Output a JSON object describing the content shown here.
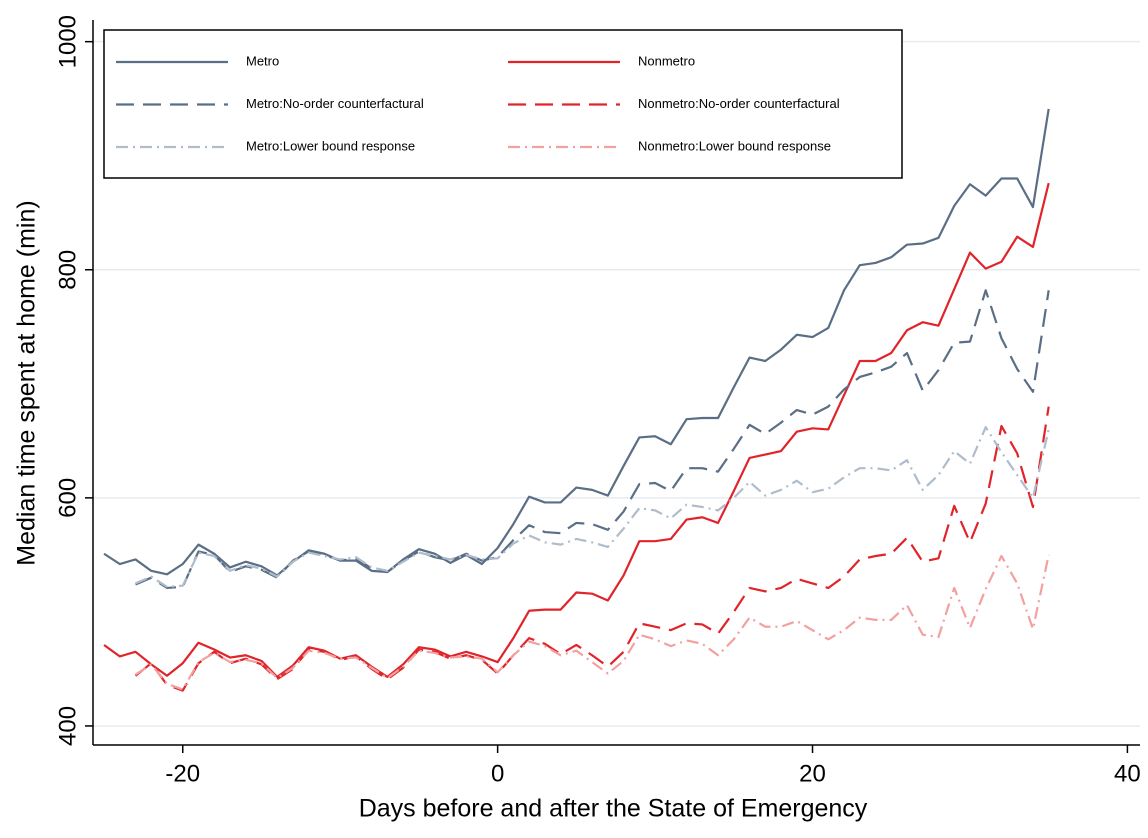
{
  "chart_data": {
    "type": "line",
    "xlabel": "Days before and after the State of Emergency",
    "ylabel": "Median time spent at home (min)",
    "x": [
      -25,
      -24,
      -23,
      -22,
      -21,
      -20,
      -19,
      -18,
      -17,
      -16,
      -15,
      -14,
      -13,
      -12,
      -11,
      -10,
      -9,
      -8,
      -7,
      -6,
      -5,
      -4,
      -3,
      -2,
      -1,
      0,
      1,
      2,
      3,
      4,
      5,
      6,
      7,
      8,
      9,
      10,
      11,
      12,
      13,
      14,
      15,
      16,
      17,
      18,
      19,
      20,
      21,
      22,
      23,
      24,
      25,
      26,
      27,
      28,
      29,
      30,
      31,
      32,
      33,
      34,
      35
    ],
    "series": [
      {
        "name": "Metro",
        "color": "#5a6f85",
        "dash": "solid",
        "values": [
          551,
          542,
          546,
          536,
          533,
          542,
          559,
          551,
          539,
          544,
          540,
          532,
          544,
          554,
          551,
          545,
          545,
          536,
          535,
          546,
          555,
          551,
          543,
          550,
          542,
          556,
          577,
          601,
          596,
          596,
          609,
          607,
          602,
          628,
          653,
          654,
          647,
          669,
          670,
          670,
          697,
          723,
          720,
          730,
          743,
          741,
          749,
          782,
          804,
          806,
          811,
          822,
          823,
          828,
          856,
          875,
          865,
          880,
          880,
          855,
          941
        ]
      },
      {
        "name": "Nonmetro",
        "color": "#e0242a",
        "dash": "solid",
        "values": [
          471,
          461,
          465,
          454,
          444,
          455,
          473,
          467,
          460,
          462,
          457,
          443,
          453,
          469,
          466,
          459,
          462,
          452,
          443,
          454,
          469,
          467,
          461,
          465,
          461,
          456,
          477,
          501,
          502,
          502,
          517,
          516,
          510,
          532,
          562,
          562,
          564,
          581,
          583,
          578,
          606,
          635,
          638,
          641,
          658,
          661,
          660,
          690,
          720,
          720,
          727,
          747,
          754,
          751,
          783,
          815,
          801,
          807,
          829,
          820,
          876
        ]
      },
      {
        "name": "Metro:No-order counterfactural",
        "color": "#5a6f85",
        "dash": "dashed",
        "values": [
          null,
          null,
          524,
          530,
          521,
          522,
          553,
          550,
          535,
          540,
          537,
          530,
          545,
          553,
          550,
          545,
          547,
          538,
          535,
          545,
          553,
          548,
          545,
          551,
          545,
          548,
          563,
          576,
          570,
          569,
          578,
          577,
          572,
          588,
          612,
          613,
          606,
          626,
          626,
          623,
          643,
          664,
          656,
          666,
          677,
          673,
          680,
          695,
          706,
          710,
          715,
          727,
          694,
          712,
          736,
          737,
          782,
          740,
          713,
          693,
          782
        ]
      },
      {
        "name": "Nonmetro:No-order counterfactural",
        "color": "#e0242a",
        "dash": "dashed",
        "values": [
          null,
          null,
          444,
          455,
          436,
          431,
          455,
          465,
          455,
          459,
          454,
          441,
          450,
          467,
          465,
          458,
          461,
          450,
          441,
          451,
          467,
          465,
          459,
          462,
          458,
          446,
          462,
          477,
          472,
          463,
          471,
          462,
          452,
          465,
          490,
          487,
          484,
          490,
          489,
          481,
          500,
          521,
          518,
          521,
          529,
          525,
          521,
          531,
          546,
          549,
          551,
          565,
          544,
          547,
          593,
          561,
          595,
          663,
          639,
          592,
          680
        ]
      },
      {
        "name": "Metro:Lower bound response",
        "color": "#aebccb",
        "dash": "dashdot",
        "values": [
          null,
          null,
          525,
          531,
          522,
          523,
          552,
          549,
          536,
          541,
          538,
          531,
          544,
          552,
          549,
          546,
          548,
          539,
          536,
          544,
          552,
          549,
          546,
          550,
          546,
          547,
          560,
          567,
          561,
          559,
          564,
          561,
          557,
          573,
          591,
          589,
          582,
          594,
          592,
          589,
          600,
          614,
          602,
          607,
          615,
          605,
          608,
          618,
          626,
          626,
          624,
          633,
          607,
          620,
          641,
          630,
          662,
          640,
          620,
          600,
          660
        ]
      },
      {
        "name": "Nonmetro:Lower bound response",
        "color": "#f2a0a0",
        "dash": "dashdot",
        "values": [
          null,
          null,
          445,
          454,
          437,
          432,
          456,
          464,
          456,
          458,
          455,
          442,
          451,
          466,
          464,
          459,
          460,
          451,
          442,
          452,
          466,
          464,
          460,
          461,
          459,
          447,
          462,
          474,
          470,
          462,
          466,
          456,
          446,
          457,
          480,
          476,
          470,
          475,
          472,
          462,
          476,
          495,
          487,
          487,
          492,
          484,
          476,
          484,
          495,
          493,
          493,
          506,
          480,
          478,
          521,
          486,
          520,
          549,
          525,
          485,
          550
        ]
      }
    ],
    "xlim": [
      -25.7,
      40.8
    ],
    "ylim": [
      383.3,
      1019
    ],
    "xticks": [
      -20,
      0,
      20,
      40
    ],
    "yticks": [
      400,
      600,
      800,
      1000
    ],
    "grid": true,
    "legend": "top-left"
  }
}
